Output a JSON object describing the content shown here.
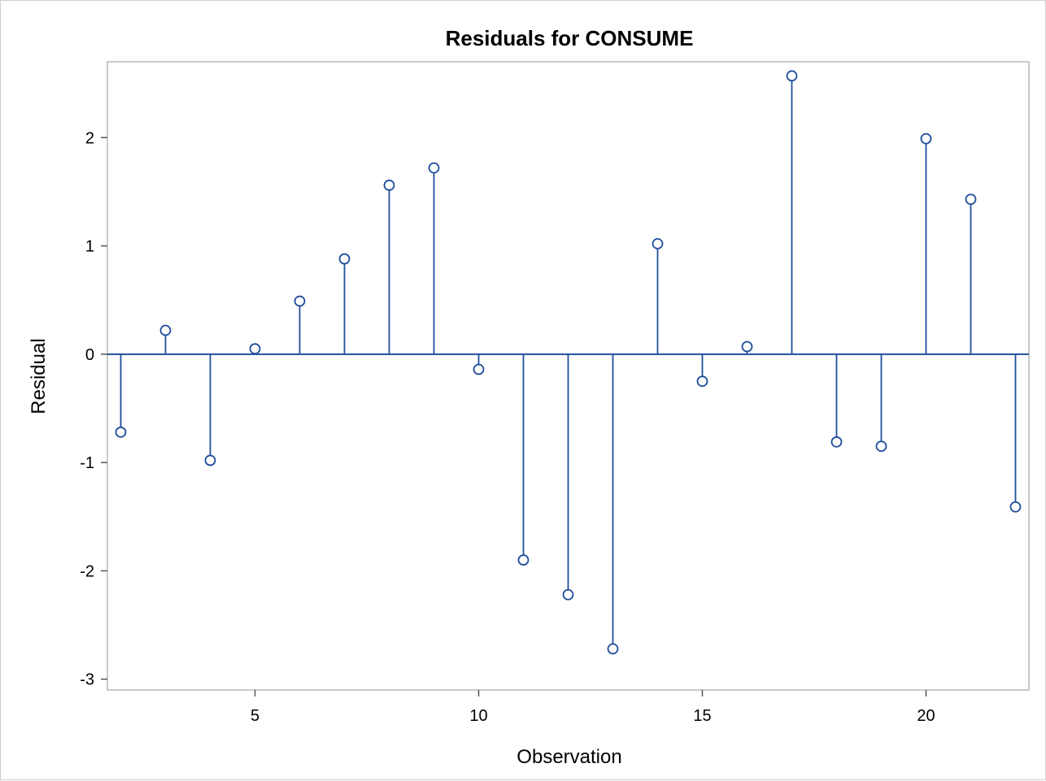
{
  "chart_data": {
    "type": "needle",
    "title": "Residuals for CONSUME",
    "xlabel": "Observation",
    "ylabel": "Residual",
    "xlim": [
      1.7,
      22.3
    ],
    "ylim": [
      -3.1,
      2.7
    ],
    "x_ticks": [
      5,
      10,
      15,
      20
    ],
    "y_ticks": [
      -3,
      -2,
      -1,
      0,
      1,
      2
    ],
    "baseline": 0,
    "grid": false,
    "legend": "none",
    "marker": "open-circle",
    "color": "#1f4e9c",
    "series": [
      {
        "x": [
          2,
          3,
          4,
          5,
          6,
          7,
          8,
          9,
          10,
          11,
          12,
          13,
          14,
          15,
          16,
          17,
          18,
          19,
          20,
          21,
          22
        ],
        "values": [
          -0.72,
          0.22,
          -0.98,
          0.05,
          0.49,
          0.88,
          1.56,
          1.72,
          -0.14,
          -1.9,
          -2.22,
          -2.72,
          1.02,
          -0.25,
          0.07,
          2.57,
          -0.81,
          -0.85,
          1.99,
          1.43,
          -1.41
        ]
      }
    ]
  }
}
